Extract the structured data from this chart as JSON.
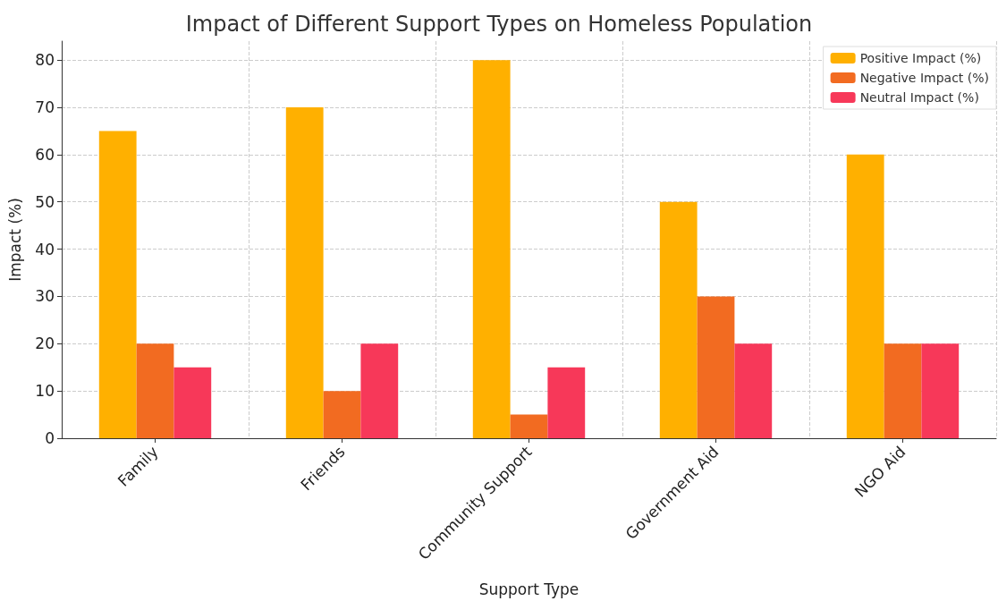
{
  "chart_data": {
    "type": "bar",
    "title": "Impact of Different Support Types on Homeless Population",
    "xlabel": "Support Type",
    "ylabel": "Impact (%)",
    "categories": [
      "Family",
      "Friends",
      "Community Support",
      "Government Aid",
      "NGO Aid"
    ],
    "series": [
      {
        "name": "Positive Impact (%)",
        "color": "#ffb000",
        "values": [
          65,
          70,
          80,
          50,
          60
        ]
      },
      {
        "name": "Negative Impact (%)",
        "color": "#f26b21",
        "values": [
          20,
          10,
          5,
          30,
          20
        ]
      },
      {
        "name": "Neutral Impact (%)",
        "color": "#f73859",
        "values": [
          15,
          20,
          15,
          20,
          20
        ]
      }
    ],
    "ylim": [
      0,
      84
    ],
    "yticks": [
      0,
      10,
      20,
      30,
      40,
      50,
      60,
      70,
      80
    ],
    "grid": true,
    "legend": "top right"
  }
}
